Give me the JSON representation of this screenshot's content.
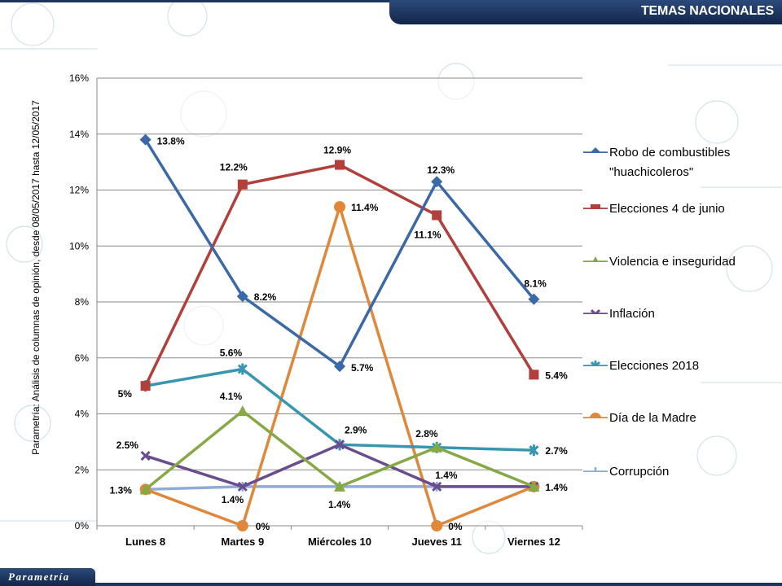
{
  "header": {
    "title": "TEMAS NACIONALES"
  },
  "footer": {
    "logo_text": "Parametría"
  },
  "source_note": "Parametría: Análisis de columnas de opinión, desde 08/05/2017 hasta 12/05/2017",
  "chart_data": {
    "type": "line",
    "categories": [
      "Lunes 8",
      "Martes 9",
      "Miércoles 10",
      "Jueves 11",
      "Viernes 12"
    ],
    "ylim": [
      0,
      16
    ],
    "yticks": [
      "0%",
      "2%",
      "4%",
      "6%",
      "8%",
      "10%",
      "12%",
      "14%",
      "16%"
    ],
    "grid": true,
    "legend_position": "right",
    "series": [
      {
        "name": "Robo de combustibles \"huachicoleros\"",
        "color": "#3a68a8",
        "marker": "diamond",
        "values": [
          13.8,
          8.2,
          5.7,
          12.3,
          8.1
        ],
        "labels": [
          "13.8%",
          "8.2%",
          "5.7%",
          "12.3%",
          "8.1%"
        ]
      },
      {
        "name": "Elecciones 4 de junio",
        "color": "#b23f3b",
        "marker": "square",
        "values": [
          5,
          12.2,
          12.9,
          11.1,
          5.4
        ],
        "labels": [
          "5%",
          "12.2%",
          "12.9%",
          "11.1%",
          "5.4%"
        ]
      },
      {
        "name": "Violencia e inseguridad",
        "color": "#86a845",
        "marker": "triangle",
        "values": [
          1.3,
          4.1,
          1.4,
          2.8,
          1.4
        ],
        "labels": [
          "",
          "4.1%",
          "1.4%",
          "2.8%",
          ""
        ]
      },
      {
        "name": "Inflación",
        "color": "#6a4d8f",
        "marker": "x",
        "values": [
          2.5,
          1.4,
          2.9,
          1.4,
          1.4
        ],
        "labels": [
          "2.5%",
          "",
          "2.9%",
          "1.4%",
          ""
        ]
      },
      {
        "name": "Elecciones 2018",
        "color": "#3796b0",
        "marker": "star",
        "values": [
          5,
          5.6,
          2.9,
          2.8,
          2.7
        ],
        "labels": [
          "",
          "5.6%",
          "",
          "",
          "2.7%"
        ]
      },
      {
        "name": "Día de la Madre",
        "color": "#e0873a",
        "marker": "circle",
        "values": [
          1.3,
          0,
          11.4,
          0,
          1.4
        ],
        "labels": [
          "1.3%",
          "0%",
          "11.4%",
          "0%",
          "1.4%"
        ]
      },
      {
        "name": "Corrupción",
        "color": "#8eacd6",
        "marker": "plus",
        "values": [
          1.3,
          1.4,
          1.4,
          1.4,
          1.4
        ],
        "labels": [
          "",
          "1.4%",
          "",
          "",
          ""
        ]
      }
    ]
  }
}
